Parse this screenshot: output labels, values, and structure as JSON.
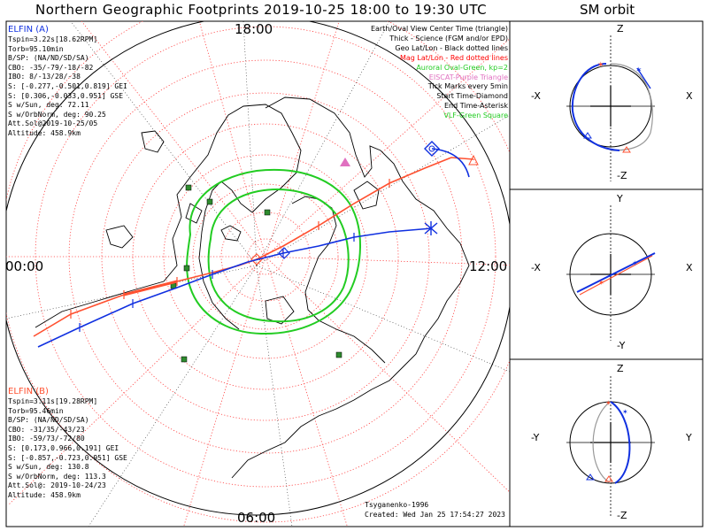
{
  "titles": {
    "main": "Northern Geographic Footprints 2019-10-25 18:00 to 19:30 UTC",
    "orbit": "SM orbit"
  },
  "time_labels": {
    "top": "18:00",
    "left": "00:00",
    "right": "12:00",
    "bottom": "06:00"
  },
  "elfin_a": {
    "name": "ELFIN (A)",
    "lines": [
      "Tspin=3.22s[18.62RPM]",
      "Torb=95.10min",
      "B/SP: (NA/ND/SD/SA)",
      "CBO: -35/-79/-18/-82",
      "IBO: 8/-13/28/-38",
      "S: [-0.277,-0.501,0.819] GEI",
      "S: [0.306,-0.033,0.951] GSE",
      "S w/Sun, deg: 72.11",
      "S w/OrbNorm, deg: 90.25",
      "Att.Sol@2019-10-25/05",
      "Altitude: 458.9km"
    ]
  },
  "elfin_b": {
    "name": "ELFIN (B)",
    "lines": [
      "Tspin=3.11s[19.28RPM]",
      "Torb=95.46min",
      "B/SP: (NA/ND/SD/SA)",
      "CBO: -31/35/-43/23",
      "IBO: -59/73/-72/80",
      "S: [0.173,0.966,0.191] GEI",
      "S: [-0.857,-0.723,0.951] GSE",
      "S w/Sun, deg: 130.8",
      "S w/OrbNorm, deg: 113.3",
      "Att.Sol@: 2019-10-24/23",
      "Altitude: 458.9km"
    ]
  },
  "legend": [
    {
      "text": "Earth/Oval View Center Time (triangle)",
      "color": "#000000"
    },
    {
      "text": "Thick - Science (FGM and/or EPD)",
      "color": "#000000"
    },
    {
      "text": "Geo Lat/Lon - Black dotted lines",
      "color": "#000000"
    },
    {
      "text": "Mag Lat/Lon - Red dotted lines",
      "color": "#ff0000"
    },
    {
      "text": "Auroral Oval-Green, kp=2",
      "color": "#22cc22"
    },
    {
      "text": "EISCAT-Purple Triangle",
      "color": "#e070c0"
    },
    {
      "text": "Tick Marks every 5min",
      "color": "#000000"
    },
    {
      "text": "Start Time-Diamond",
      "color": "#000000"
    },
    {
      "text": "End Time-Asterisk",
      "color": "#000000"
    },
    {
      "text": "VLF-Green Square",
      "color": "#22cc22"
    }
  ],
  "credits": [
    "Tsyganenko-1996",
    "Created: Wed Jan 25 17:54:27 2023"
  ],
  "orbit_panels": [
    {
      "top": "Z",
      "bottom": "-Z",
      "left": "-X",
      "right": "X"
    },
    {
      "top": "Y",
      "bottom": "-Y",
      "left": "-X",
      "right": "X"
    },
    {
      "top": "Z",
      "bottom": "-Z",
      "left": "-Y",
      "right": "Y"
    }
  ],
  "colors": {
    "elfin_a": "#1030e0",
    "elfin_b": "#ff5030",
    "auroral_oval": "#22cc22",
    "vlf": "#2e8b2e",
    "mag_grid": "#ff4040",
    "geo_grid": "#000000"
  }
}
